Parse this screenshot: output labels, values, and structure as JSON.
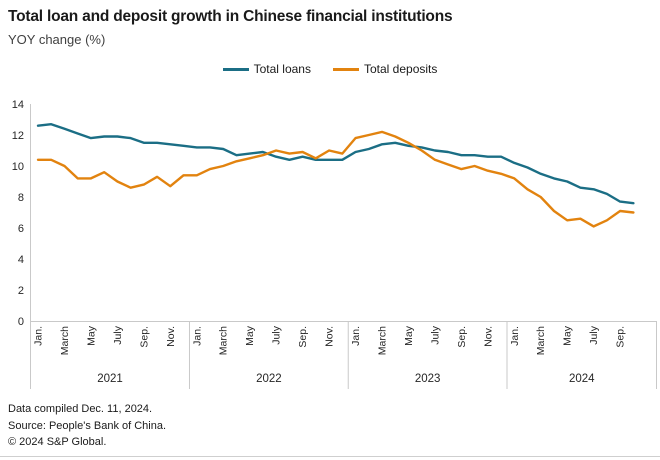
{
  "title": "Total loan and deposit growth in Chinese financial institutions",
  "subtitle": "YOY change (%)",
  "legend": [
    {
      "label": "Total loans",
      "color": "#1b6e85"
    },
    {
      "label": "Total deposits",
      "color": "#e2830f"
    }
  ],
  "footer": {
    "line1": "Data compiled Dec. 11, 2024.",
    "line2": "Source: People's Bank of China.",
    "line3": "© 2024 S&P Global."
  },
  "chart_data": {
    "type": "line",
    "title": "Total loan and deposit growth in Chinese financial institutions",
    "ylabel": "YOY change (%)",
    "xlabel": "",
    "ylim": [
      0,
      14
    ],
    "yticks": [
      0,
      2,
      4,
      6,
      8,
      10,
      12,
      14
    ],
    "grid": false,
    "legend_position": "top-center",
    "axis_color": "#c9c9c9",
    "tick_text_color": "#262626",
    "month_tick_labels": [
      "Jan.",
      "March",
      "May",
      "July",
      "Sep.",
      "Nov."
    ],
    "year_labels": [
      "2021",
      "2022",
      "2023",
      "2024"
    ],
    "x": [
      "2021-01",
      "2021-02",
      "2021-03",
      "2021-04",
      "2021-05",
      "2021-06",
      "2021-07",
      "2021-08",
      "2021-09",
      "2021-10",
      "2021-11",
      "2021-12",
      "2022-01",
      "2022-02",
      "2022-03",
      "2022-04",
      "2022-05",
      "2022-06",
      "2022-07",
      "2022-08",
      "2022-09",
      "2022-10",
      "2022-11",
      "2022-12",
      "2023-01",
      "2023-02",
      "2023-03",
      "2023-04",
      "2023-05",
      "2023-06",
      "2023-07",
      "2023-08",
      "2023-09",
      "2023-10",
      "2023-11",
      "2023-12",
      "2024-01",
      "2024-02",
      "2024-03",
      "2024-04",
      "2024-05",
      "2024-06",
      "2024-07",
      "2024-08",
      "2024-09",
      "2024-10"
    ],
    "series": [
      {
        "name": "Total loans",
        "color": "#1b6e85",
        "values": [
          12.6,
          12.7,
          12.4,
          12.1,
          11.8,
          11.9,
          11.9,
          11.8,
          11.5,
          11.5,
          11.4,
          11.3,
          11.2,
          11.2,
          11.1,
          10.7,
          10.8,
          10.9,
          10.6,
          10.4,
          10.6,
          10.4,
          10.4,
          10.4,
          10.9,
          11.1,
          11.4,
          11.5,
          11.3,
          11.2,
          11.0,
          10.9,
          10.7,
          10.7,
          10.6,
          10.6,
          10.2,
          9.9,
          9.5,
          9.2,
          9.0,
          8.6,
          8.5,
          8.2,
          7.7,
          7.6
        ]
      },
      {
        "name": "Total deposits",
        "color": "#e2830f",
        "values": [
          10.4,
          10.4,
          10.0,
          9.2,
          9.2,
          9.6,
          9.0,
          8.6,
          8.8,
          9.3,
          8.7,
          9.4,
          9.4,
          9.8,
          10.0,
          10.3,
          10.5,
          10.7,
          11.0,
          10.8,
          10.9,
          10.5,
          11.0,
          10.8,
          11.8,
          12.0,
          12.2,
          11.9,
          11.5,
          11.0,
          10.4,
          10.1,
          9.8,
          10.0,
          9.7,
          9.5,
          9.2,
          8.5,
          8.0,
          7.1,
          6.5,
          6.6,
          6.1,
          6.5,
          7.1,
          7.0
        ]
      }
    ]
  }
}
